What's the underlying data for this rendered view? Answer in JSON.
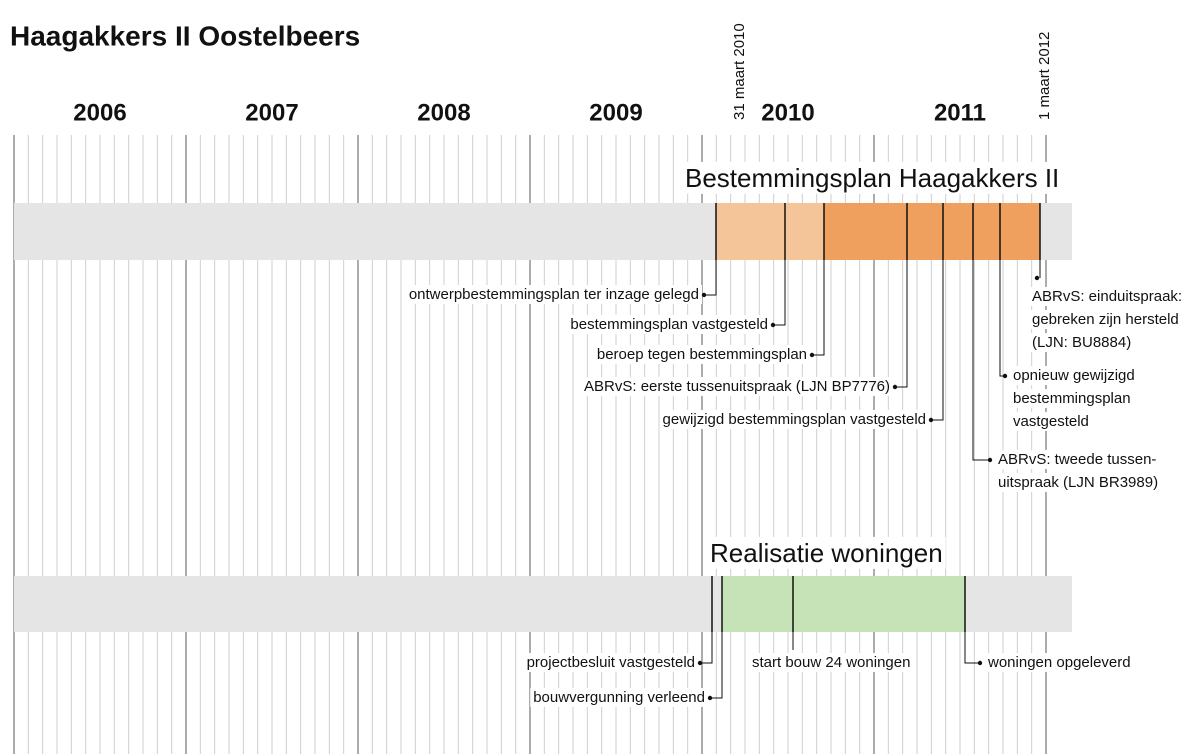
{
  "title": "Haagakkers II Oostelbeers",
  "years": [
    "2006",
    "2007",
    "2008",
    "2009",
    "2010",
    "2011"
  ],
  "dates": [
    "31 maart 2010",
    "1 maart 2012"
  ],
  "lanes": [
    {
      "title": "Bestemmingsplan Haagakkers II",
      "events": [
        {
          "lines": [
            "ontwerpbestemmingsplan ter inzage gelegd"
          ]
        },
        {
          "lines": [
            "bestemmingsplan vastgesteld"
          ]
        },
        {
          "lines": [
            "beroep tegen bestemmingsplan"
          ]
        },
        {
          "lines": [
            "ABRvS: eerste tussenuitspraak (LJN BP7776)"
          ]
        },
        {
          "lines": [
            "gewijzigd bestemmingsplan vastgesteld"
          ]
        },
        {
          "lines": [
            "ABRvS: tweede tussen-",
            "uitspraak (LJN BR3989)"
          ]
        },
        {
          "lines": [
            "opnieuw gewijzigd",
            "bestemmingsplan",
            "vastgesteld"
          ]
        },
        {
          "lines": [
            "ABRvS: einduitspraak:",
            "gebreken zijn hersteld",
            "(LJN: BU8884)"
          ]
        }
      ]
    },
    {
      "title": "Realisatie woningen",
      "events": [
        {
          "lines": [
            "projectbesluit vastgesteld"
          ]
        },
        {
          "lines": [
            "bouwvergunning verleend"
          ]
        },
        {
          "lines": [
            "start bouw 24 woningen"
          ]
        },
        {
          "lines": [
            "woningen opgeleverd"
          ]
        }
      ]
    }
  ]
}
